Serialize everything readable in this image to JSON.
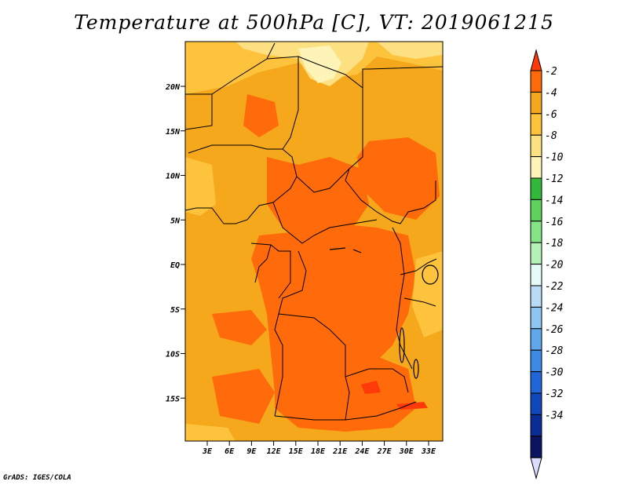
{
  "title": "Temperature at 500hPa [C], VT: 2019061215",
  "footer": "GrADS: IGES/COLA",
  "map": {
    "lat_labels": [
      "20N",
      "15N",
      "10N",
      "5N",
      "EQ",
      "5S",
      "10S",
      "15S"
    ],
    "lat_values": [
      20,
      15,
      10,
      5,
      0,
      -5,
      -10,
      -15
    ],
    "lon_labels": [
      "3E",
      "6E",
      "9E",
      "12E",
      "15E",
      "18E",
      "21E",
      "24E",
      "27E",
      "30E",
      "33E"
    ],
    "lon_values": [
      3,
      6,
      9,
      12,
      15,
      18,
      21,
      24,
      27,
      30,
      33
    ],
    "colors": {
      "base": "#f5a81c",
      "warm": "#ff6a0a",
      "hot": "#ff3a0a",
      "cool": "#fdc33c",
      "cooler": "#fde082",
      "coolest": "#fff4b8"
    }
  },
  "colorbar": {
    "labels": [
      "-2",
      "-4",
      "-6",
      "-8",
      "-10",
      "-12",
      "-14",
      "-16",
      "-18",
      "-20",
      "-22",
      "-24",
      "-26",
      "-28",
      "-30",
      "-32",
      "-34"
    ],
    "colors": [
      "#ff3a0a",
      "#ff6a0a",
      "#f5a81c",
      "#fdc33c",
      "#fde082",
      "#fff4b8",
      "#33b83a",
      "#5dd35d",
      "#86e486",
      "#b4f1b4",
      "#e6fbf7",
      "#b8dcf6",
      "#8ec6f2",
      "#5fa8ec",
      "#3b8ae5",
      "#2066d8",
      "#1048bb",
      "#0a2c96",
      "#0a1460",
      "#dcdcff"
    ]
  }
}
